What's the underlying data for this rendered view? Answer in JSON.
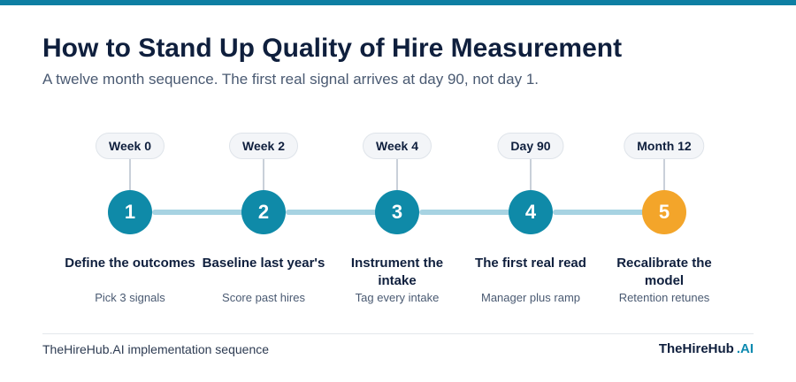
{
  "header": {
    "title": "How to Stand Up Quality of Hire Measurement",
    "subtitle": "A twelve month sequence. The first real signal arrives at day 90, not day 1."
  },
  "colors": {
    "accent": "#0f8aa8",
    "highlight": "#f3a52a",
    "connector": "#a7d3e2",
    "top_bar": "#0e7fa3"
  },
  "steps": [
    {
      "timing": "Week 0",
      "number": "1",
      "title": "Define the outcomes",
      "description": "Pick 3 signals"
    },
    {
      "timing": "Week 2",
      "number": "2",
      "title": "Baseline last year's",
      "description": "Score past hires"
    },
    {
      "timing": "Week 4",
      "number": "3",
      "title": "Instrument the intake",
      "description": "Tag every intake"
    },
    {
      "timing": "Day 90",
      "number": "4",
      "title": "The first real read",
      "description": "Manager plus ramp"
    },
    {
      "timing": "Month 12",
      "number": "5",
      "title": "Recalibrate the model",
      "description": "Retention retunes"
    }
  ],
  "footer": {
    "caption": "TheHireHub.AI implementation sequence",
    "brand_name": "TheHireHub",
    "brand_suffix": ".AI"
  }
}
